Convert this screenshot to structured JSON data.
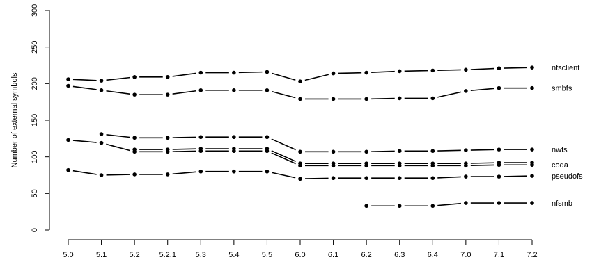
{
  "chart_data": {
    "type": "line",
    "title": "",
    "xlabel": "",
    "ylabel": "Number of external symbols",
    "ylim": [
      0,
      300
    ],
    "yticks": [
      "0",
      "50",
      "100",
      "150",
      "200",
      "250",
      "300"
    ],
    "categories": [
      "5.0",
      "5.1",
      "5.2",
      "5.2.1",
      "5.3",
      "5.4",
      "5.5",
      "6.0",
      "6.1",
      "6.2",
      "6.3",
      "6.4",
      "7.0",
      "7.1",
      "7.2"
    ],
    "grid": false,
    "legend": "direct labels at right end of lines",
    "line_color": "#000000",
    "series": [
      {
        "name": "nfsclient",
        "values": [
          206,
          204,
          209,
          209,
          215,
          215,
          216,
          203,
          214,
          215,
          217,
          218,
          219,
          221,
          222
        ]
      },
      {
        "name": "smbfs",
        "values": [
          197,
          191,
          185,
          185,
          191,
          191,
          191,
          179,
          179,
          179,
          180,
          180,
          190,
          194,
          194
        ]
      },
      {
        "name": "nwfs",
        "values": [
          null,
          131,
          126,
          126,
          127,
          127,
          127,
          107,
          107,
          107,
          108,
          108,
          109,
          110,
          110
        ]
      },
      {
        "name": "coda",
        "values": [
          null,
          null,
          110,
          110,
          111,
          111,
          111,
          91,
          91,
          91,
          91,
          91,
          91,
          92,
          92
        ]
      },
      {
        "values": [
          123,
          119,
          107,
          107,
          108,
          108,
          108,
          88,
          88,
          88,
          88,
          88,
          88,
          89,
          89
        ]
      },
      {
        "name": "pseudofs",
        "values": [
          82,
          75,
          76,
          76,
          80,
          80,
          80,
          70,
          71,
          71,
          71,
          71,
          73,
          73,
          74
        ]
      },
      {
        "name": "nfsmb",
        "values": [
          null,
          null,
          null,
          null,
          null,
          null,
          null,
          null,
          null,
          33,
          33,
          33,
          37,
          37,
          37
        ]
      }
    ]
  }
}
